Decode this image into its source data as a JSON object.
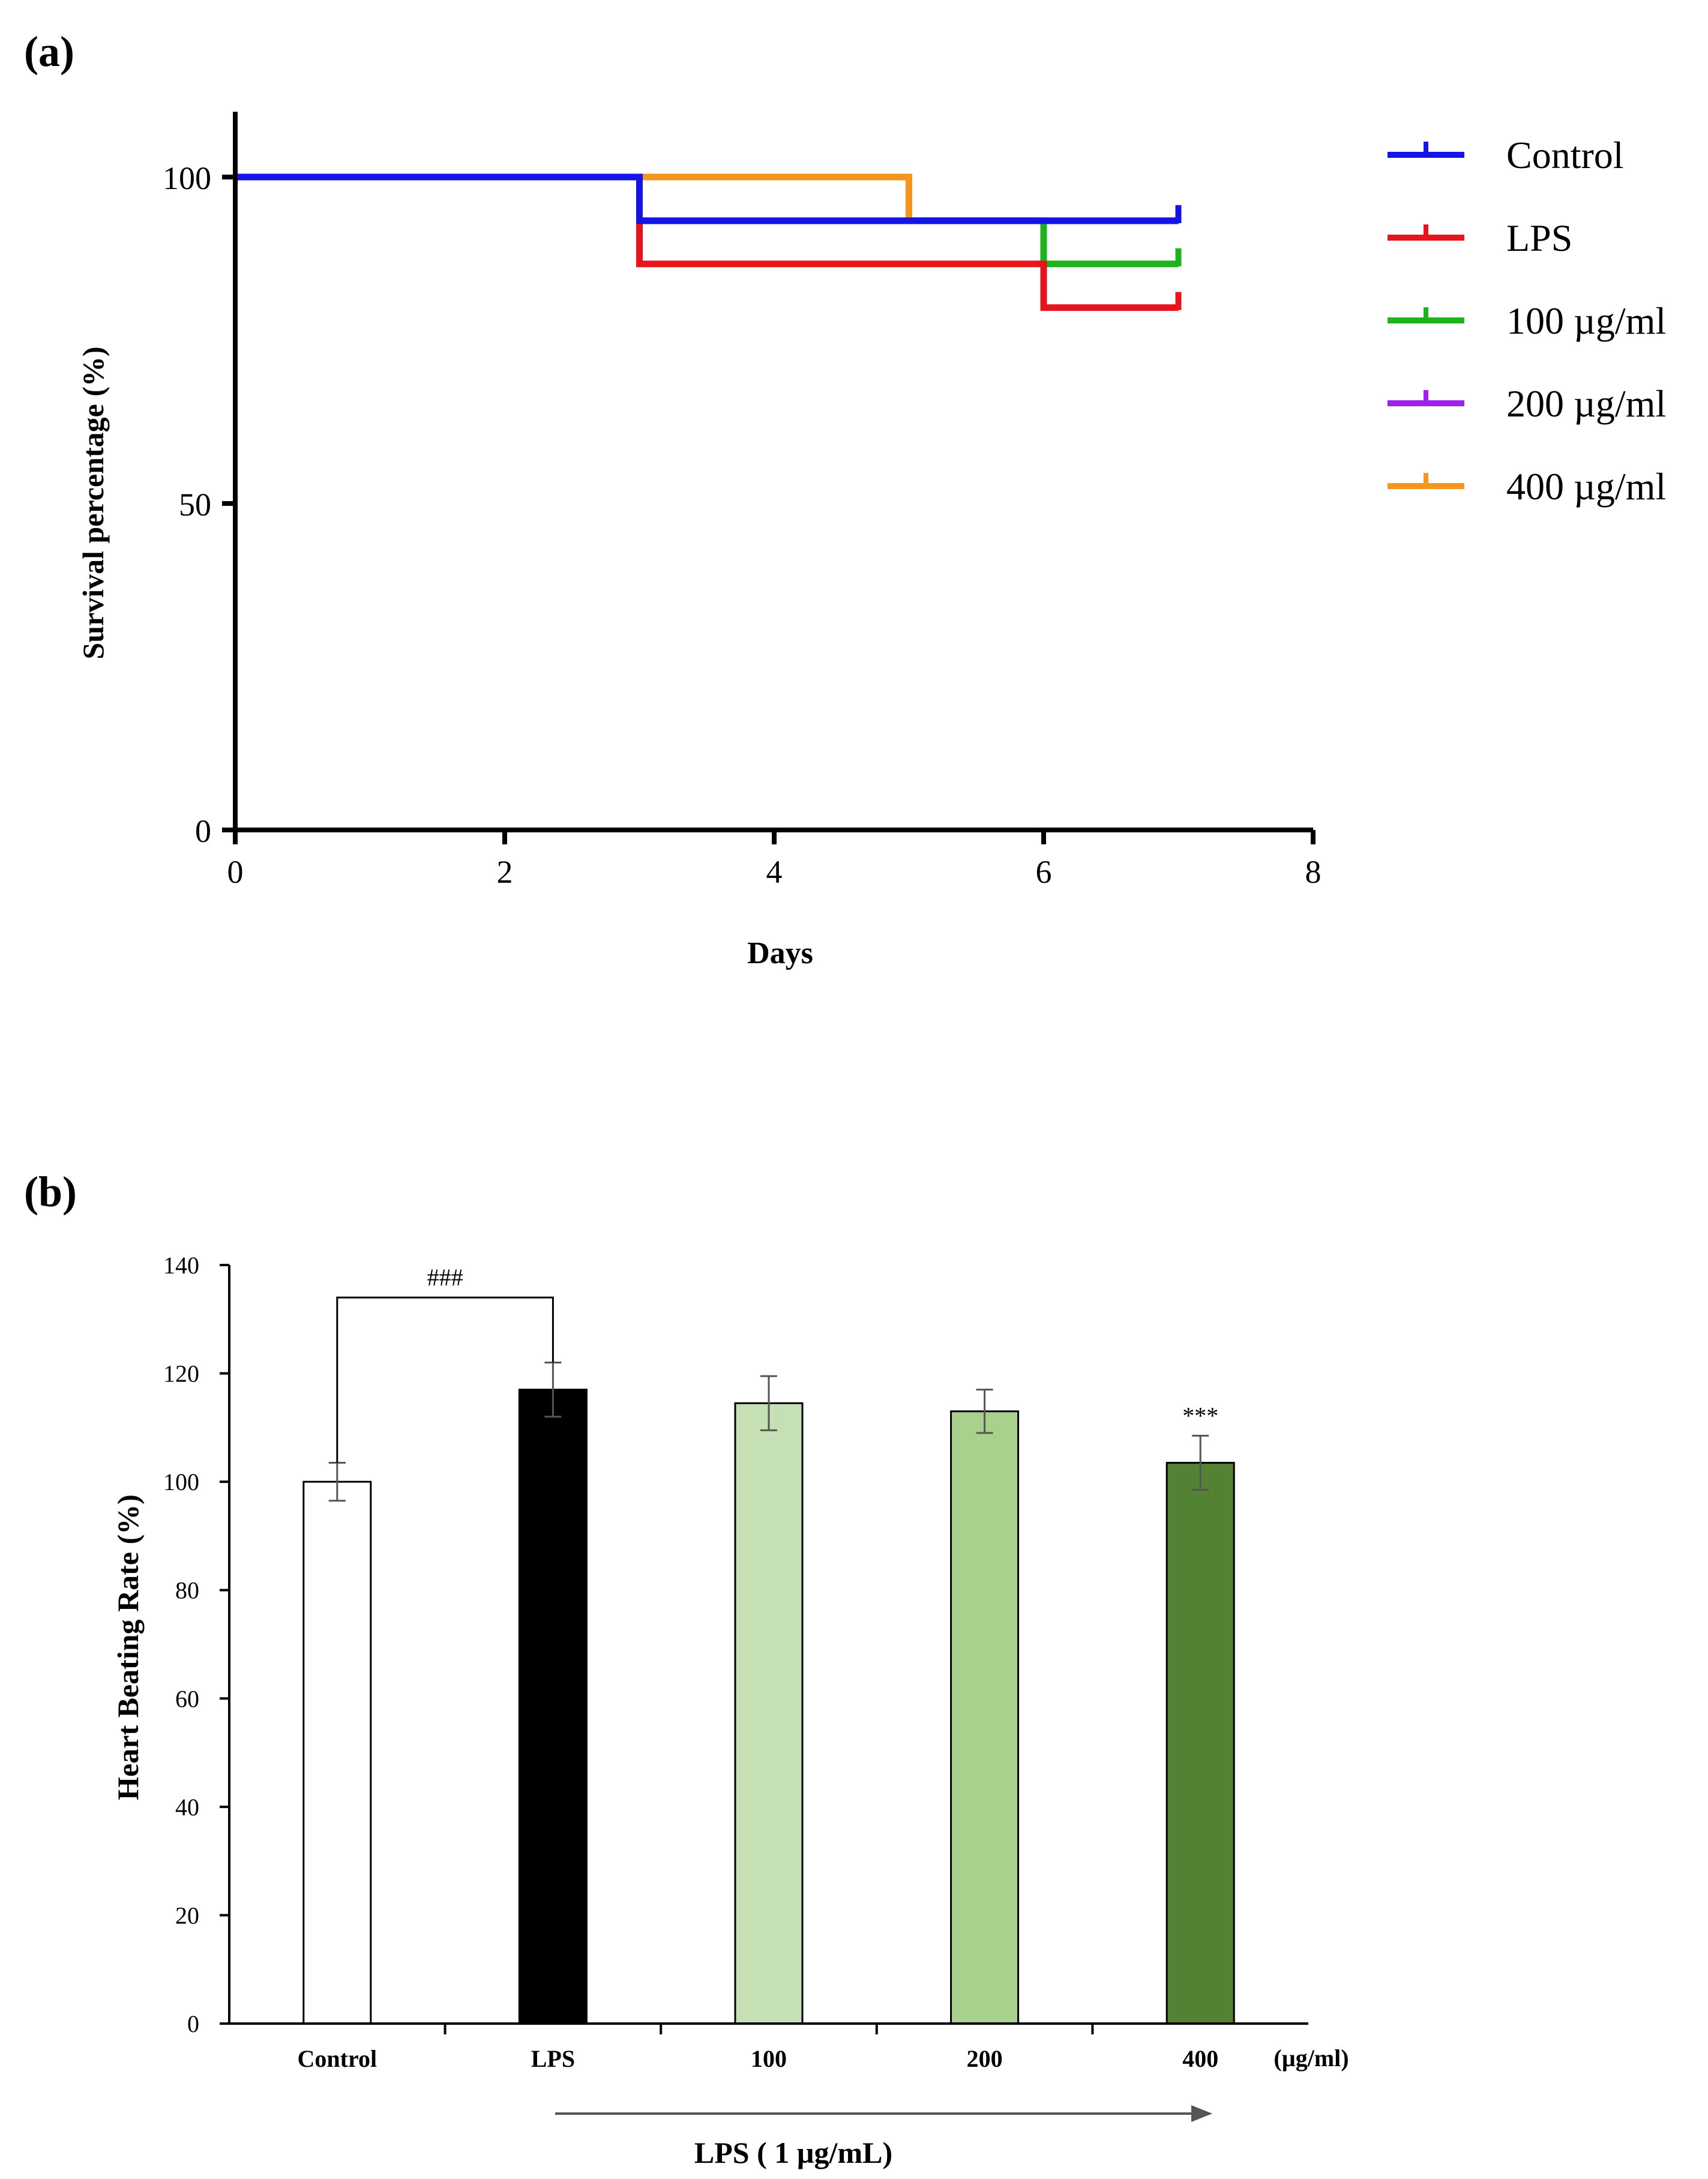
{
  "figure": {
    "panel_a_label": "(a)",
    "panel_b_label": "(b)"
  },
  "chart_data": [
    {
      "type": "line",
      "subtype": "kaplan-meier-step",
      "title": "",
      "xlabel": "Days",
      "ylabel": "Survival percentage (%)",
      "xlim": [
        0,
        8
      ],
      "ylim": [
        0,
        110
      ],
      "x_ticks": [
        0,
        2,
        4,
        6,
        8
      ],
      "x_tick_labels": [
        "0",
        "2",
        "4",
        "6",
        "8"
      ],
      "y_ticks": [
        0,
        50,
        100
      ],
      "y_tick_labels": [
        "0",
        "50",
        "100"
      ],
      "grid": false,
      "legend_position": "top-right",
      "series": [
        {
          "name": "400 µg/ml",
          "color": "#F7941D",
          "steps": [
            [
              0,
              100
            ],
            [
              5,
              100
            ],
            [
              5,
              93.3
            ],
            [
              7,
              93.3
            ]
          ],
          "censor_x": 7
        },
        {
          "name": "200 µg/ml",
          "color": "#A020F0",
          "steps": [
            [
              0,
              100
            ],
            [
              3,
              100
            ],
            [
              3,
              93.3
            ],
            [
              7,
              93.3
            ]
          ],
          "censor_x": 7
        },
        {
          "name": "100 µg/ml",
          "color": "#1DB31D",
          "steps": [
            [
              0,
              100
            ],
            [
              3,
              100
            ],
            [
              3,
              93.3
            ],
            [
              6,
              93.3
            ],
            [
              6,
              86.7
            ],
            [
              7,
              86.7
            ]
          ],
          "censor_x": 7
        },
        {
          "name": "LPS",
          "color": "#E8141B",
          "steps": [
            [
              0,
              100
            ],
            [
              3,
              100
            ],
            [
              3,
              86.7
            ],
            [
              6,
              86.7
            ],
            [
              6,
              80
            ],
            [
              7,
              80
            ]
          ],
          "censor_x": 7
        },
        {
          "name": "Control",
          "color": "#1414E6",
          "steps": [
            [
              0,
              100
            ],
            [
              3,
              100
            ],
            [
              3,
              93.3
            ],
            [
              7,
              93.3
            ]
          ],
          "censor_x": 7
        }
      ],
      "legend_order": [
        "Control",
        "LPS",
        "100 µg/ml",
        "200 µg/ml",
        "400 µg/ml"
      ]
    },
    {
      "type": "bar",
      "title": "",
      "xlabel": "LPS ( 1 µg/mL)",
      "ylabel": "Heart Beating Rate (%)",
      "unit_label": "(µg/ml)",
      "categories": [
        "Control",
        "LPS",
        "100",
        "200",
        "400"
      ],
      "values": [
        100,
        117,
        114.5,
        113,
        103.5
      ],
      "errors": [
        3.5,
        5,
        5,
        4,
        5
      ],
      "colors": [
        "#FFFFFF",
        "#000000",
        "#C5E0B4",
        "#A9D18E",
        "#548235"
      ],
      "annotations": [
        {
          "text": "###",
          "type": "bracket",
          "from": "Control",
          "to": "LPS"
        },
        {
          "text": "***",
          "type": "marker",
          "category": "400"
        }
      ],
      "ylim": [
        0,
        140
      ],
      "y_ticks": [
        0,
        20,
        40,
        60,
        80,
        100,
        120,
        140
      ],
      "y_tick_labels": [
        "0",
        "20",
        "40",
        "60",
        "80",
        "100",
        "120",
        "140"
      ],
      "grid": false
    }
  ]
}
